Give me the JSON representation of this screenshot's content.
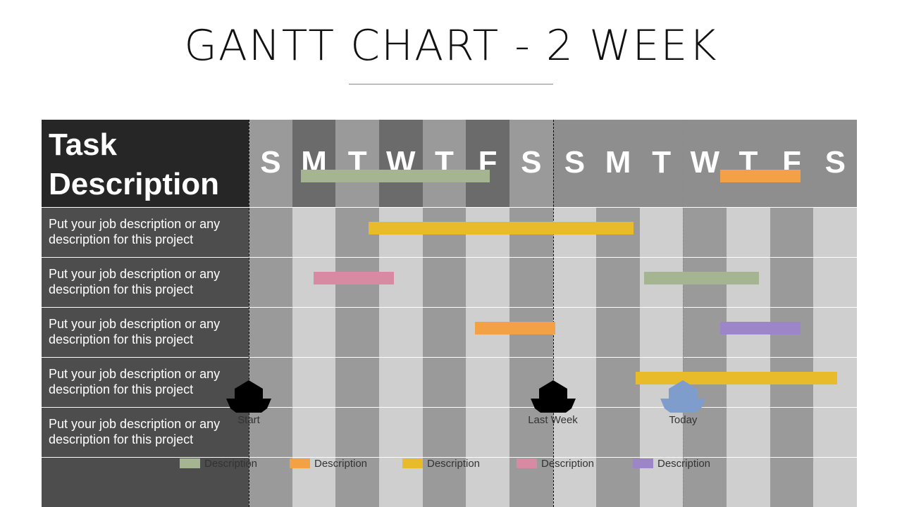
{
  "title": "GANTT CHART - 2 WEEK",
  "header": {
    "line1": "Task",
    "line2": "Description"
  },
  "days": [
    "S",
    "M",
    "T",
    "W",
    "T",
    "F",
    "S",
    "S",
    "M",
    "T",
    "W",
    "T",
    "F",
    "S"
  ],
  "day_header_colors": [
    "#9a9a9a",
    "#6b6b6b",
    "#9a9a9a",
    "#6b6b6b",
    "#9a9a9a",
    "#6b6b6b",
    "#9a9a9a",
    "#8e8e8e",
    "#8e8e8e",
    "#8e8e8e",
    "#8e8e8e",
    "#8e8e8e",
    "#8e8e8e",
    "#8e8e8e"
  ],
  "column_colors": [
    "#9a9a9a",
    "#cfcfcf",
    "#9a9a9a",
    "#cfcfcf",
    "#9a9a9a",
    "#cfcfcf",
    "#9a9a9a",
    "#cfcfcf",
    "#9a9a9a",
    "#cfcfcf",
    "#9a9a9a",
    "#cfcfcf",
    "#9a9a9a",
    "#cfcfcf"
  ],
  "tasks": [
    "Put your job description or any description for this project",
    "Put your job description or any description for this project",
    "Put your job description or any description for this project",
    "Put your job description or any description for this project",
    "Put your job description or any description for this project"
  ],
  "colors": {
    "green": "#a5b592",
    "orange": "#f2a144",
    "yellow": "#e8bb2a",
    "pink": "#d78aa2",
    "purple": "#9c86c8",
    "marker_black": "#000000",
    "marker_blue": "#7f9dcc"
  },
  "bars": [
    {
      "row": 0,
      "start": 1.2,
      "end": 5.55,
      "color": "green"
    },
    {
      "row": 0,
      "start": 10.85,
      "end": 12.7,
      "color": "orange"
    },
    {
      "row": 1,
      "start": 2.75,
      "end": 8.85,
      "color": "yellow"
    },
    {
      "row": 2,
      "start": 1.5,
      "end": 3.35,
      "color": "pink"
    },
    {
      "row": 2,
      "start": 9.1,
      "end": 11.75,
      "color": "green"
    },
    {
      "row": 3,
      "start": 5.2,
      "end": 7.05,
      "color": "orange"
    },
    {
      "row": 3,
      "start": 10.85,
      "end": 12.7,
      "color": "purple"
    },
    {
      "row": 4,
      "start": 8.9,
      "end": 13.55,
      "color": "yellow"
    }
  ],
  "markers": [
    {
      "label": "Start",
      "at": 0,
      "color": "marker_black"
    },
    {
      "label": "Last Week",
      "at": 7,
      "color": "marker_black"
    },
    {
      "label": "Today",
      "at": 10,
      "color": "marker_blue"
    }
  ],
  "legend": [
    {
      "label": "Description",
      "color": "green"
    },
    {
      "label": "Description",
      "color": "orange"
    },
    {
      "label": "Description",
      "color": "yellow"
    },
    {
      "label": "Description",
      "color": "pink"
    },
    {
      "label": "Description",
      "color": "purple"
    }
  ]
}
